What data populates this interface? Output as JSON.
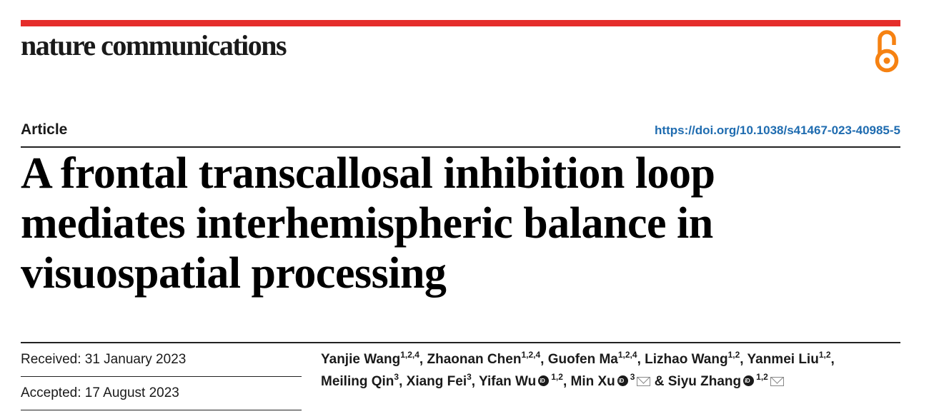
{
  "journal": {
    "name": "nature communications"
  },
  "header": {
    "article_type": "Article",
    "doi": "https://doi.org/10.1038/s41467-023-40985-5"
  },
  "paper": {
    "title_lines": [
      "A frontal transcallosal inhibition loop",
      "mediates interhemispheric balance in",
      "visuospatial processing"
    ]
  },
  "dates": {
    "received": "Received: 31 January 2023",
    "accepted": "Accepted: 17 August 2023"
  },
  "authors": [
    {
      "name": "Yanjie Wang",
      "aff": "1,2,4",
      "sep": ", "
    },
    {
      "name": "Zhaonan Chen",
      "aff": "1,2,4",
      "sep": ", "
    },
    {
      "name": "Guofen Ma",
      "aff": "1,2,4",
      "sep": ", "
    },
    {
      "name": "Lizhao Wang",
      "aff": "1,2",
      "sep": ", "
    },
    {
      "name": "Yanmei Liu",
      "aff": "1,2",
      "sep": ","
    },
    {
      "name": "Meiling Qin",
      "aff": "3",
      "sep": ", "
    },
    {
      "name": "Xiang Fei",
      "aff": "3",
      "sep": ", "
    },
    {
      "name": "Yifan Wu",
      "aff": "1,2",
      "sep": ", ",
      "orcid": true
    },
    {
      "name": "Min Xu",
      "aff": "3",
      "sep": " & ",
      "orcid": true,
      "email": true
    },
    {
      "name": "Siyu Zhang",
      "aff": "1,2",
      "sep": "",
      "orcid": true,
      "email": true
    }
  ],
  "icons": {
    "open_access": "open-access-lock-icon",
    "orcid": "orcid-icon",
    "email": "envelope-icon"
  },
  "colors": {
    "brand_red": "#e52d2b",
    "oa_orange": "#f68212",
    "doi_link": "#1f6cb0"
  }
}
